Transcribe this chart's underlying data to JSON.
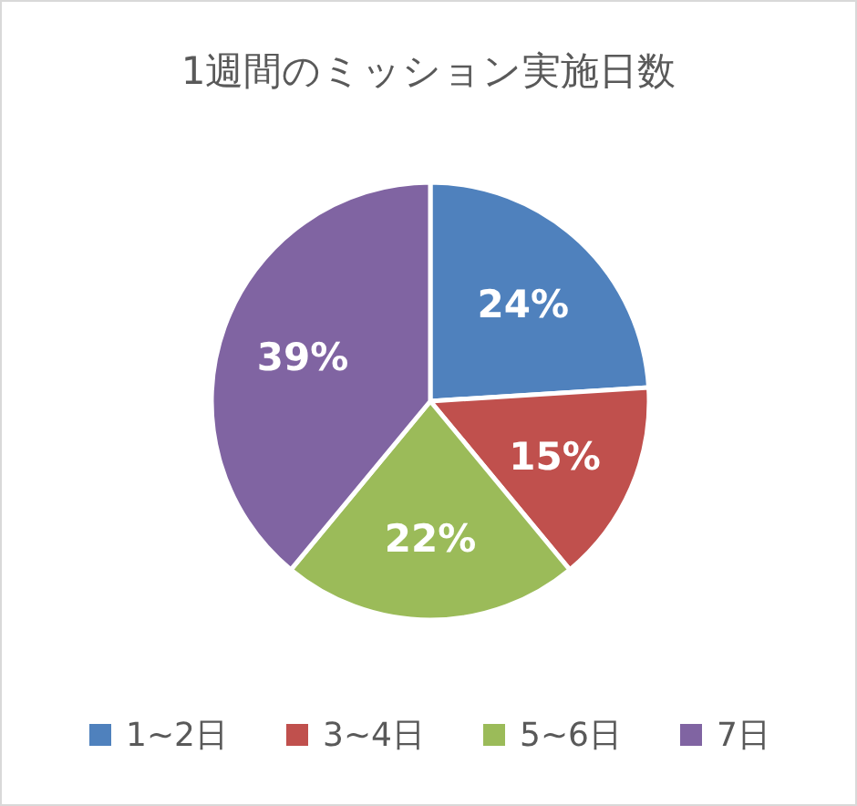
{
  "chart_data": {
    "type": "pie",
    "title": "1週間のミッション実施日数",
    "categories": [
      "1~2日",
      "3~4日",
      "5~6日",
      "7日"
    ],
    "values": [
      24,
      15,
      22,
      39
    ],
    "colors": [
      "#4f81bd",
      "#c0504d",
      "#9bbb59",
      "#8064a2"
    ],
    "value_labels": [
      "24%",
      "15%",
      "22%",
      "39%"
    ],
    "legend": "bottom"
  }
}
